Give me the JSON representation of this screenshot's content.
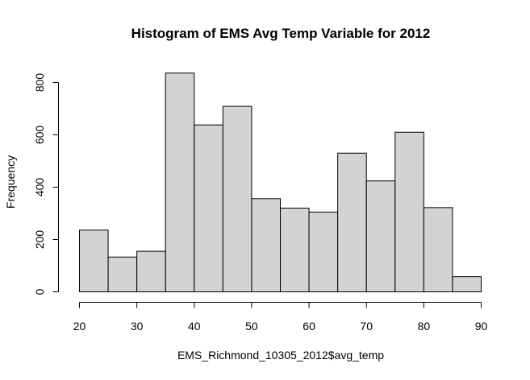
{
  "chart_data": {
    "type": "bar",
    "title": "Histogram of EMS Avg Temp Variable for 2012",
    "xlabel": "EMS_Richmond_10305_2012$avg_temp",
    "ylabel": "Frequency",
    "bin_edges": [
      20,
      25,
      30,
      35,
      40,
      45,
      50,
      55,
      60,
      65,
      70,
      75,
      80,
      85,
      90
    ],
    "values": [
      236,
      133,
      155,
      836,
      638,
      709,
      356,
      320,
      305,
      530,
      424,
      610,
      322,
      58
    ],
    "xlim": [
      20,
      90
    ],
    "ylim": [
      0,
      800
    ],
    "x_ticks": [
      20,
      30,
      40,
      50,
      60,
      70,
      80,
      90
    ],
    "y_ticks": [
      0,
      200,
      400,
      600,
      800
    ],
    "bar_color": "#d3d3d3",
    "edge_color": "#000000",
    "grid": false
  }
}
